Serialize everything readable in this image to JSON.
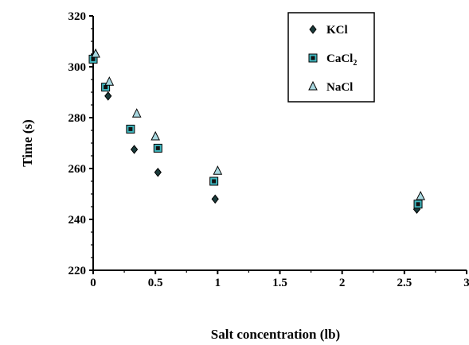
{
  "chart_data": {
    "type": "scatter",
    "xlabel": "Salt concentration (lb)",
    "ylabel": "Time (s)",
    "xlim": [
      0,
      3
    ],
    "ylim": [
      220,
      320
    ],
    "xticks": [
      "0",
      "0.5",
      "1",
      "1.5",
      "2",
      "2.5",
      "3"
    ],
    "yticks": [
      "220",
      "240",
      "260",
      "280",
      "300",
      "320"
    ],
    "legend_position": "top-right",
    "series": [
      {
        "name": "KCl",
        "sub": "",
        "marker": "diamond",
        "color": "#1a3a3a",
        "points": [
          [
            0.0,
            304
          ],
          [
            0.12,
            288.5
          ],
          [
            0.33,
            267.5
          ],
          [
            0.52,
            258.5
          ],
          [
            0.98,
            248
          ],
          [
            2.6,
            244
          ]
        ]
      },
      {
        "name": "CaCl",
        "sub": "2",
        "marker": "square",
        "color": "#40b8c0",
        "points": [
          [
            0.0,
            303
          ],
          [
            0.1,
            292
          ],
          [
            0.3,
            275.5
          ],
          [
            0.52,
            268
          ],
          [
            0.97,
            255
          ],
          [
            2.61,
            246
          ]
        ]
      },
      {
        "name": "NaCl",
        "sub": "",
        "marker": "triangle",
        "color": "#a8d8e0",
        "points": [
          [
            0.02,
            305
          ],
          [
            0.13,
            294
          ],
          [
            0.35,
            281.5
          ],
          [
            0.5,
            272.5
          ],
          [
            1.0,
            259
          ],
          [
            2.63,
            249
          ]
        ]
      }
    ]
  }
}
